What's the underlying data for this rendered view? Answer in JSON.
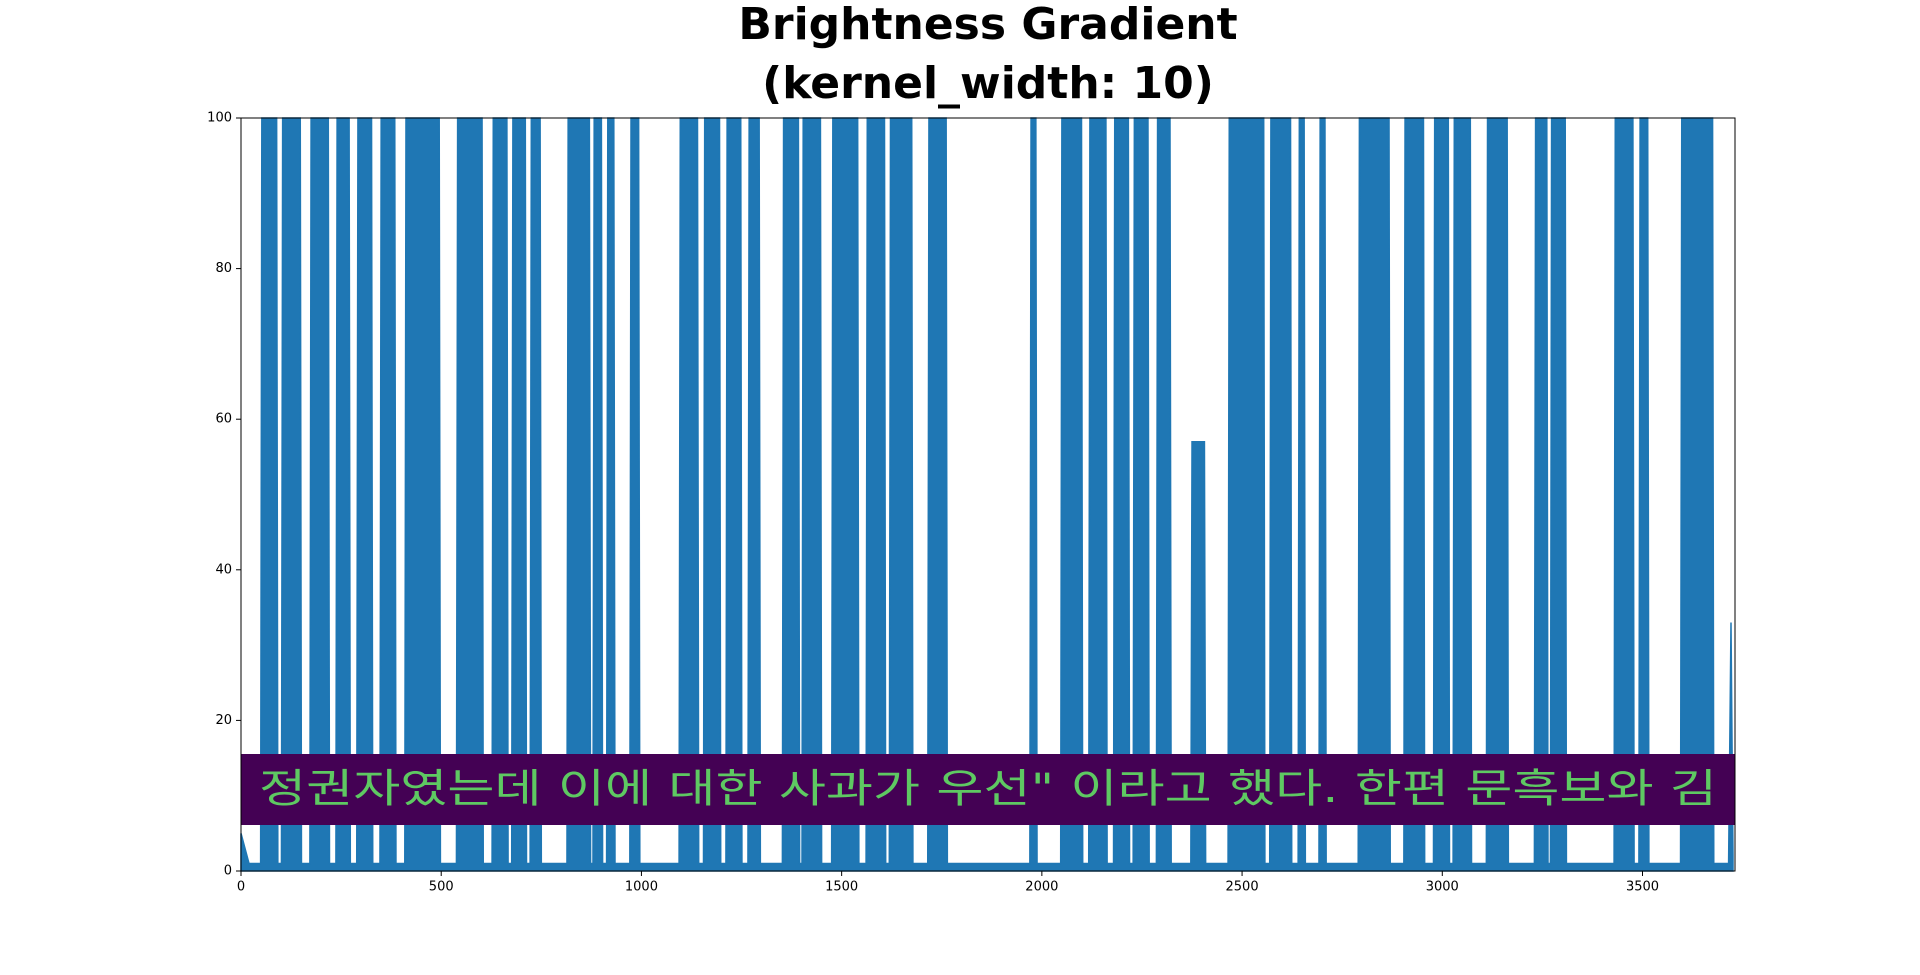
{
  "chart_data": {
    "type": "area",
    "title": [
      "Brightness Gradient",
      "(kernel_width: 10)"
    ],
    "overlay_text": "정권자였는데 이에 대한 사과가 우선\" 이라고 했다. 한편 문흑보와 김",
    "overlay_color": "#440154",
    "overlay_text_color": "#5ec962",
    "color": "#1f77b4",
    "x": [
      0,
      20,
      40,
      49,
      52,
      89,
      92,
      101,
      104,
      148,
      151,
      172,
      175,
      218,
      221,
      237,
      240,
      270,
      273,
      289,
      292,
      326,
      329,
      347,
      350,
      384,
      387,
      409,
      412,
      495,
      498,
      538,
      541,
      602,
      605,
      627,
      630,
      664,
      667,
      676,
      679,
      710,
      713,
      722,
      725,
      747,
      750,
      814,
      817,
      870,
      873,
      879,
      882,
      900,
      903,
      913,
      916,
      931,
      934,
      971,
      974,
      993,
      996,
      1094,
      1097,
      1140,
      1143,
      1155,
      1158,
      1195,
      1198,
      1211,
      1214,
      1248,
      1251,
      1266,
      1269,
      1294,
      1297,
      1352,
      1355,
      1392,
      1395,
      1401,
      1404,
      1447,
      1450,
      1475,
      1478,
      1540,
      1543,
      1561,
      1564,
      1607,
      1610,
      1619,
      1622,
      1675,
      1678,
      1715,
      1718,
      1761,
      1764,
      1970,
      1973,
      1985,
      1988,
      2047,
      2050,
      2099,
      2102,
      2117,
      2120,
      2160,
      2163,
      2179,
      2182,
      2216,
      2219,
      2228,
      2231,
      2265,
      2268,
      2286,
      2289,
      2320,
      2323,
      2372,
      2375,
      2406,
      2409,
      2465,
      2468,
      2554,
      2557,
      2569,
      2572,
      2621,
      2624,
      2640,
      2643,
      2655,
      2658,
      2692,
      2695,
      2707,
      2710,
      2790,
      2793,
      2867,
      2870,
      2904,
      2907,
      2953,
      2956,
      2978,
      2981,
      3015,
      3018,
      3027,
      3030,
      3070,
      3073,
      3110,
      3113,
      3162,
      3165,
      3230,
      3233,
      3261,
      3264,
      3270,
      3273,
      3307,
      3310,
      3429,
      3432,
      3476,
      3479,
      3491,
      3494,
      3513,
      3516,
      3595,
      3598,
      3675,
      3678,
      3715,
      3721,
      3726
    ],
    "values": [
      5,
      1,
      1,
      1,
      100,
      100,
      1,
      1,
      100,
      100,
      1,
      1,
      100,
      100,
      1,
      1,
      100,
      100,
      1,
      1,
      100,
      100,
      1,
      1,
      100,
      100,
      1,
      1,
      100,
      100,
      1,
      1,
      100,
      100,
      1,
      1,
      100,
      100,
      1,
      1,
      100,
      100,
      1,
      1,
      100,
      100,
      1,
      1,
      100,
      100,
      1,
      1,
      100,
      100,
      1,
      1,
      100,
      100,
      1,
      1,
      100,
      100,
      1,
      1,
      100,
      100,
      1,
      1,
      100,
      100,
      1,
      1,
      100,
      100,
      1,
      1,
      100,
      100,
      1,
      1,
      100,
      100,
      1,
      1,
      100,
      100,
      1,
      1,
      100,
      100,
      1,
      1,
      100,
      100,
      1,
      1,
      100,
      100,
      1,
      1,
      100,
      100,
      1,
      1,
      100,
      100,
      1,
      1,
      100,
      100,
      1,
      1,
      100,
      100,
      1,
      1,
      100,
      100,
      1,
      1,
      100,
      100,
      1,
      1,
      100,
      100,
      1,
      1,
      57,
      57,
      1,
      1,
      100,
      100,
      1,
      1,
      100,
      100,
      1,
      1,
      100,
      100,
      1,
      1,
      100,
      100,
      1,
      1,
      100,
      100,
      1,
      1,
      100,
      100,
      1,
      1,
      100,
      100,
      1,
      1,
      100,
      100,
      1,
      1,
      100,
      100,
      1,
      1,
      100,
      100,
      1,
      1,
      100,
      100,
      1,
      1,
      100,
      100,
      1,
      1,
      100,
      100,
      1,
      1,
      100,
      100,
      1,
      1,
      33,
      2
    ],
    "xlim": [
      0,
      3731
    ],
    "ylim": [
      0,
      100
    ],
    "xticks": [
      0,
      500,
      1000,
      1500,
      2000,
      2500,
      3000,
      3500
    ],
    "yticks": [
      0,
      20,
      40,
      60,
      80,
      100
    ],
    "grid": false
  }
}
